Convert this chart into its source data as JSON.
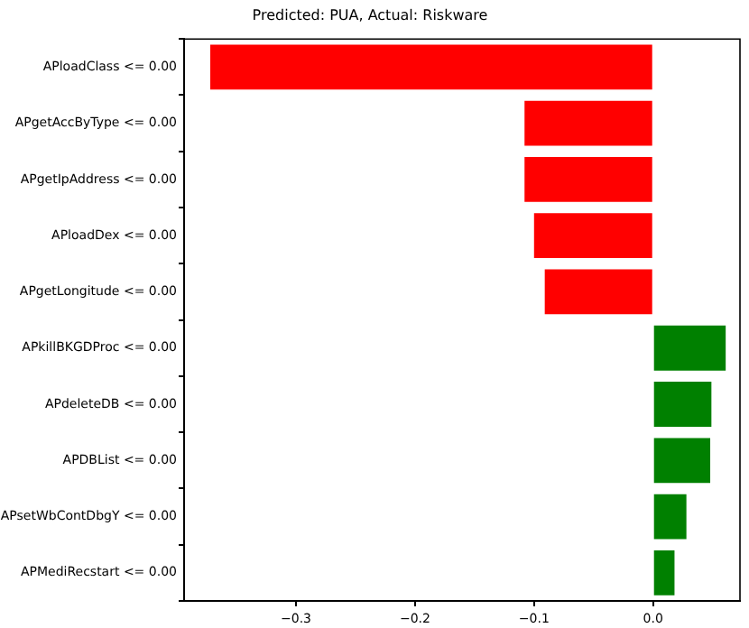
{
  "chart_data": {
    "type": "bar",
    "orientation": "horizontal",
    "title": "Predicted: PUA, Actual: Riskware",
    "categories": [
      "APloadClass <= 0.00",
      "APgetAccByType <= 0.00",
      "APgetIpAddress <= 0.00",
      "APloadDex <= 0.00",
      "APgetLongitude <= 0.00",
      "APkillBKGDProc <= 0.00",
      "APdeleteDB <= 0.00",
      "APDBList <= 0.00",
      "APsetWbContDbgY <= 0.00",
      "APMediRecstart <= 0.00"
    ],
    "values": [
      -0.372,
      -0.108,
      -0.108,
      -0.1,
      -0.091,
      0.061,
      0.049,
      0.048,
      0.028,
      0.018
    ],
    "colors": [
      "#ff0000",
      "#ff0000",
      "#ff0000",
      "#ff0000",
      "#ff0000",
      "#008000",
      "#008000",
      "#008000",
      "#008000",
      "#008000"
    ],
    "xlim": [
      -0.394,
      0.073
    ],
    "xticks": [
      {
        "value": -0.3,
        "label": "−0.3"
      },
      {
        "value": -0.2,
        "label": "−0.2"
      },
      {
        "value": -0.1,
        "label": "−0.1"
      },
      {
        "value": 0,
        "label": "0.0"
      }
    ],
    "grid": false,
    "legend": false
  }
}
